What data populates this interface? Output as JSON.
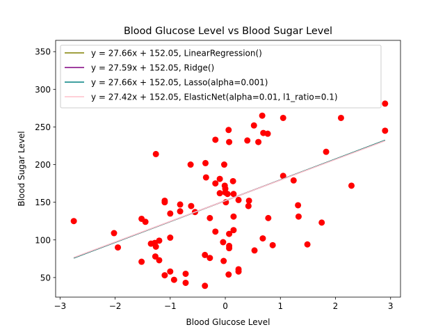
{
  "chart_data": {
    "type": "scatter",
    "title": "Blood Glucose Level vs Blood Sugar Level",
    "xlabel": "Blood Glucose Level",
    "ylabel": "Blood Sugar Level",
    "xlim": [
      -3.08,
      3.18
    ],
    "ylim": [
      24,
      365
    ],
    "xticks": [
      -3,
      -2,
      -1,
      0,
      1,
      2,
      3
    ],
    "yticks": [
      50,
      100,
      150,
      200,
      250,
      300,
      350
    ],
    "grid": false,
    "legend_position": "top-left",
    "scatter": {
      "color": "#ff0000",
      "points": [
        [
          -2.75,
          125
        ],
        [
          -2.02,
          109
        ],
        [
          -1.95,
          90
        ],
        [
          -1.52,
          128
        ],
        [
          -1.52,
          71
        ],
        [
          -1.45,
          124
        ],
        [
          -1.35,
          95
        ],
        [
          -1.28,
          96
        ],
        [
          -1.26,
          214
        ],
        [
          -1.27,
          78
        ],
        [
          -1.26,
          91
        ],
        [
          -1.2,
          73
        ],
        [
          -1.2,
          99
        ],
        [
          -1.1,
          150
        ],
        [
          -1.1,
          53
        ],
        [
          -1.1,
          152
        ],
        [
          -1.0,
          58
        ],
        [
          -1.0,
          103
        ],
        [
          -1.0,
          135
        ],
        [
          -0.93,
          47
        ],
        [
          -0.82,
          138
        ],
        [
          -0.82,
          147
        ],
        [
          -0.72,
          43
        ],
        [
          -0.72,
          55
        ],
        [
          -0.63,
          200
        ],
        [
          -0.62,
          145
        ],
        [
          -0.55,
          137
        ],
        [
          -0.37,
          39
        ],
        [
          -0.37,
          80
        ],
        [
          -0.36,
          202
        ],
        [
          -0.35,
          183
        ],
        [
          -0.28,
          76
        ],
        [
          -0.28,
          129
        ],
        [
          -0.18,
          233
        ],
        [
          -0.18,
          175
        ],
        [
          -0.18,
          111
        ],
        [
          -0.1,
          181
        ],
        [
          -0.1,
          162
        ],
        [
          -0.04,
          97
        ],
        [
          -0.03,
          72
        ],
        [
          -0.02,
          200
        ],
        [
          -0.01,
          172
        ],
        [
          0.0,
          168
        ],
        [
          0.0,
          163
        ],
        [
          0.01,
          150
        ],
        [
          0.04,
          161
        ],
        [
          0.06,
          246
        ],
        [
          0.07,
          230
        ],
        [
          0.07,
          108
        ],
        [
          0.07,
          92
        ],
        [
          0.07,
          89
        ],
        [
          0.06,
          54
        ],
        [
          0.14,
          178
        ],
        [
          0.15,
          161
        ],
        [
          0.15,
          131
        ],
        [
          0.15,
          113
        ],
        [
          0.24,
          153
        ],
        [
          0.24,
          58
        ],
        [
          0.24,
          61
        ],
        [
          0.4,
          232
        ],
        [
          0.42,
          145
        ],
        [
          0.43,
          152
        ],
        [
          0.52,
          252
        ],
        [
          0.53,
          86
        ],
        [
          0.6,
          230
        ],
        [
          0.67,
          265
        ],
        [
          0.68,
          102
        ],
        [
          0.69,
          242
        ],
        [
          0.77,
          241
        ],
        [
          0.78,
          129
        ],
        [
          0.86,
          93
        ],
        [
          1.05,
          262
        ],
        [
          1.05,
          185
        ],
        [
          1.24,
          179
        ],
        [
          1.32,
          146
        ],
        [
          1.33,
          131
        ],
        [
          1.49,
          94
        ],
        [
          1.75,
          123
        ],
        [
          1.83,
          217
        ],
        [
          2.1,
          262
        ],
        [
          2.29,
          172
        ],
        [
          2.9,
          245
        ],
        [
          2.9,
          281
        ]
      ]
    },
    "series": [
      {
        "name": "y = 27.66x + 152.05, LinearRegression()",
        "slope": 27.66,
        "intercept": 152.05,
        "color": "#808000"
      },
      {
        "name": "y = 27.59x + 152.05, Ridge()",
        "slope": 27.59,
        "intercept": 152.05,
        "color": "#800080"
      },
      {
        "name": "y = 27.66x + 152.05, Lasso(alpha=0.001)",
        "slope": 27.66,
        "intercept": 152.05,
        "color": "#008080"
      },
      {
        "name": "y = 27.42x + 152.05, ElasticNet(alpha=0.01, l1_ratio=0.1)",
        "slope": 27.42,
        "intercept": 152.05,
        "color": "#ffc0cb"
      }
    ],
    "line_x_range": [
      -2.75,
      2.9
    ]
  }
}
